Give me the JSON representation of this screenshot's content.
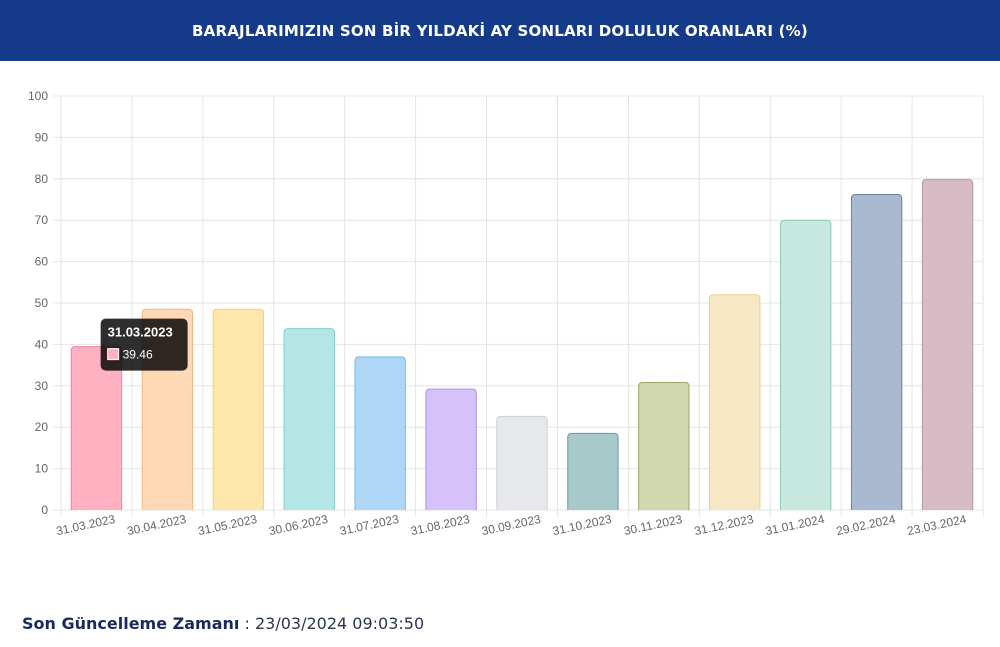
{
  "header": {
    "title": "BARAJLARIMIZIN SON BİR YILDAKİ AY SONLARI DOLULUK ORANLARI (%)"
  },
  "chart_data": {
    "type": "bar",
    "categories": [
      "31.03.2023",
      "30.04.2023",
      "31.05.2023",
      "30.06.2023",
      "31.07.2023",
      "31.08.2023",
      "30.09.2023",
      "31.10.2023",
      "30.11.2023",
      "31.12.2023",
      "31.01.2024",
      "29.02.2024",
      "23.03.2024"
    ],
    "values": [
      39.46,
      48.5,
      48.5,
      43.8,
      37.0,
      29.2,
      22.6,
      18.5,
      30.8,
      52.0,
      70.0,
      76.2,
      79.8
    ],
    "fill_colors": [
      "#ffb1c1",
      "#ffd9b5",
      "#ffe6aa",
      "#b4e6e6",
      "#aed6f7",
      "#d6c1fb",
      "#e6e8eb",
      "#a7c9c9",
      "#d1d8af",
      "#f8e7c4",
      "#c7e8df",
      "#a9b9cf",
      "#d7bcc5"
    ],
    "stroke_colors": [
      "#f3809e",
      "#f5b682",
      "#f1d275",
      "#7fcfcf",
      "#75b8e5",
      "#ad8df0",
      "#cfd2d6",
      "#6b9aa3",
      "#9ba568",
      "#ecd08f",
      "#8fcab9",
      "#6c82a6",
      "#b894a1"
    ],
    "ylim": [
      0,
      100
    ],
    "yticks": [
      0,
      10,
      20,
      30,
      40,
      50,
      60,
      70,
      80,
      90,
      100
    ],
    "grid": true,
    "tooltip": {
      "category_index": 0,
      "title": "31.03.2023",
      "value_text": "39.46"
    }
  },
  "footer": {
    "label": "Son Güncelleme Zamanı",
    "separator": " : ",
    "value": "23/03/2024 09:03:50"
  }
}
